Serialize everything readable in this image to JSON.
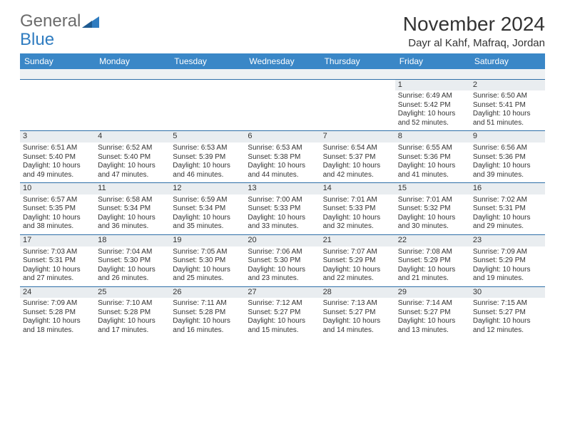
{
  "brand": {
    "part1": "General",
    "part2": "Blue"
  },
  "title": "November 2024",
  "location": "Dayr al Kahf, Mafraq, Jordan",
  "colors": {
    "header_bg": "#3a87c7",
    "header_text": "#ffffff",
    "daynum_bg": "#e9edf0",
    "row_border": "#2f6fa8",
    "brand_gray": "#6b6b6b",
    "brand_blue": "#2f7cc0"
  },
  "weekdays": [
    "Sunday",
    "Monday",
    "Tuesday",
    "Wednesday",
    "Thursday",
    "Friday",
    "Saturday"
  ],
  "weeks": [
    [
      {
        "blank": true
      },
      {
        "blank": true
      },
      {
        "blank": true
      },
      {
        "blank": true
      },
      {
        "blank": true
      },
      {
        "n": "1",
        "sunrise": "6:49 AM",
        "sunset": "5:42 PM",
        "daylight": "10 hours and 52 minutes."
      },
      {
        "n": "2",
        "sunrise": "6:50 AM",
        "sunset": "5:41 PM",
        "daylight": "10 hours and 51 minutes."
      }
    ],
    [
      {
        "n": "3",
        "sunrise": "6:51 AM",
        "sunset": "5:40 PM",
        "daylight": "10 hours and 49 minutes."
      },
      {
        "n": "4",
        "sunrise": "6:52 AM",
        "sunset": "5:40 PM",
        "daylight": "10 hours and 47 minutes."
      },
      {
        "n": "5",
        "sunrise": "6:53 AM",
        "sunset": "5:39 PM",
        "daylight": "10 hours and 46 minutes."
      },
      {
        "n": "6",
        "sunrise": "6:53 AM",
        "sunset": "5:38 PM",
        "daylight": "10 hours and 44 minutes."
      },
      {
        "n": "7",
        "sunrise": "6:54 AM",
        "sunset": "5:37 PM",
        "daylight": "10 hours and 42 minutes."
      },
      {
        "n": "8",
        "sunrise": "6:55 AM",
        "sunset": "5:36 PM",
        "daylight": "10 hours and 41 minutes."
      },
      {
        "n": "9",
        "sunrise": "6:56 AM",
        "sunset": "5:36 PM",
        "daylight": "10 hours and 39 minutes."
      }
    ],
    [
      {
        "n": "10",
        "sunrise": "6:57 AM",
        "sunset": "5:35 PM",
        "daylight": "10 hours and 38 minutes."
      },
      {
        "n": "11",
        "sunrise": "6:58 AM",
        "sunset": "5:34 PM",
        "daylight": "10 hours and 36 minutes."
      },
      {
        "n": "12",
        "sunrise": "6:59 AM",
        "sunset": "5:34 PM",
        "daylight": "10 hours and 35 minutes."
      },
      {
        "n": "13",
        "sunrise": "7:00 AM",
        "sunset": "5:33 PM",
        "daylight": "10 hours and 33 minutes."
      },
      {
        "n": "14",
        "sunrise": "7:01 AM",
        "sunset": "5:33 PM",
        "daylight": "10 hours and 32 minutes."
      },
      {
        "n": "15",
        "sunrise": "7:01 AM",
        "sunset": "5:32 PM",
        "daylight": "10 hours and 30 minutes."
      },
      {
        "n": "16",
        "sunrise": "7:02 AM",
        "sunset": "5:31 PM",
        "daylight": "10 hours and 29 minutes."
      }
    ],
    [
      {
        "n": "17",
        "sunrise": "7:03 AM",
        "sunset": "5:31 PM",
        "daylight": "10 hours and 27 minutes."
      },
      {
        "n": "18",
        "sunrise": "7:04 AM",
        "sunset": "5:30 PM",
        "daylight": "10 hours and 26 minutes."
      },
      {
        "n": "19",
        "sunrise": "7:05 AM",
        "sunset": "5:30 PM",
        "daylight": "10 hours and 25 minutes."
      },
      {
        "n": "20",
        "sunrise": "7:06 AM",
        "sunset": "5:30 PM",
        "daylight": "10 hours and 23 minutes."
      },
      {
        "n": "21",
        "sunrise": "7:07 AM",
        "sunset": "5:29 PM",
        "daylight": "10 hours and 22 minutes."
      },
      {
        "n": "22",
        "sunrise": "7:08 AM",
        "sunset": "5:29 PM",
        "daylight": "10 hours and 21 minutes."
      },
      {
        "n": "23",
        "sunrise": "7:09 AM",
        "sunset": "5:29 PM",
        "daylight": "10 hours and 19 minutes."
      }
    ],
    [
      {
        "n": "24",
        "sunrise": "7:09 AM",
        "sunset": "5:28 PM",
        "daylight": "10 hours and 18 minutes."
      },
      {
        "n": "25",
        "sunrise": "7:10 AM",
        "sunset": "5:28 PM",
        "daylight": "10 hours and 17 minutes."
      },
      {
        "n": "26",
        "sunrise": "7:11 AM",
        "sunset": "5:28 PM",
        "daylight": "10 hours and 16 minutes."
      },
      {
        "n": "27",
        "sunrise": "7:12 AM",
        "sunset": "5:27 PM",
        "daylight": "10 hours and 15 minutes."
      },
      {
        "n": "28",
        "sunrise": "7:13 AM",
        "sunset": "5:27 PM",
        "daylight": "10 hours and 14 minutes."
      },
      {
        "n": "29",
        "sunrise": "7:14 AM",
        "sunset": "5:27 PM",
        "daylight": "10 hours and 13 minutes."
      },
      {
        "n": "30",
        "sunrise": "7:15 AM",
        "sunset": "5:27 PM",
        "daylight": "10 hours and 12 minutes."
      }
    ]
  ],
  "labels": {
    "sunrise": "Sunrise:",
    "sunset": "Sunset:",
    "daylight": "Daylight:"
  }
}
